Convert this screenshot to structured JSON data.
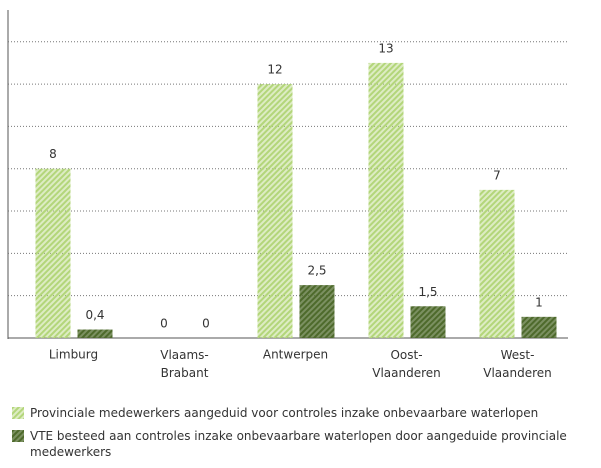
{
  "chart_data": {
    "type": "bar",
    "categories": [
      "Limburg",
      "Vlaams-Brabant",
      "Antwerpen",
      "Oost-Vlaanderen",
      "West-Vlaanderen"
    ],
    "series": [
      {
        "name": "Provinciale medewerkers aangeduid voor controles inzake onbevaarbare waterlopen",
        "color": "#b3d67a",
        "values": [
          8,
          0,
          12,
          13,
          7
        ],
        "value_labels": [
          "8",
          "0",
          "12",
          "13",
          "7"
        ]
      },
      {
        "name": "VTE besteed aan controles inzake onbevaarbare waterlopen door aangeduide provinciale medewerkers",
        "color": "#4e6a2c",
        "values": [
          0.4,
          0,
          2.5,
          1.5,
          1
        ],
        "value_labels": [
          "0,4",
          "0",
          "2,5",
          "1,5",
          "1"
        ]
      }
    ],
    "ylim": [
      0,
      15.5
    ],
    "yticks": [
      0,
      2,
      4,
      6,
      8,
      10,
      12,
      14
    ],
    "grid": true
  }
}
